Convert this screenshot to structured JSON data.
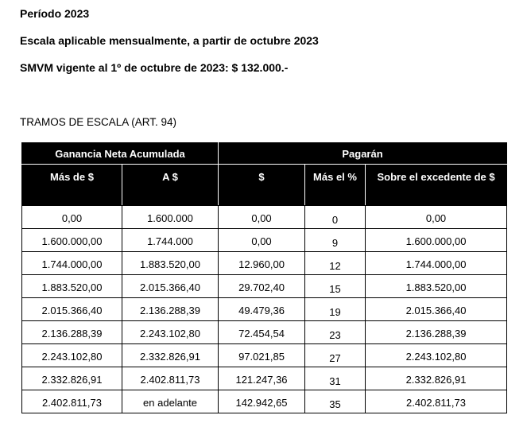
{
  "header": {
    "period": "Período 2023",
    "scale_note": "Escala aplicable mensualmente, a partir de octubre 2023",
    "smvm": "SMVM vigente al 1º de octubre de 2023: $ 132.000.-"
  },
  "section_title": "TRAMOS DE ESCALA (ART. 94)",
  "table": {
    "group_headers": {
      "left": "Ganancia Neta Acumulada",
      "right": "Pagarán"
    },
    "columns": [
      "Más de $",
      "A $",
      "$",
      "Más el %",
      "Sobre el excedente de $"
    ],
    "rows": [
      [
        "0,00",
        "1.600.000",
        "0,00",
        "0",
        "0,00"
      ],
      [
        "1.600.000,00",
        "1.744.000",
        "0,00",
        "9",
        "1.600.000,00"
      ],
      [
        "1.744.000,00",
        "1.883.520,00",
        "12.960,00",
        "12",
        "1.744.000,00"
      ],
      [
        "1.883.520,00",
        "2.015.366,40",
        "29.702,40",
        "15",
        "1.883.520,00"
      ],
      [
        "2.015.366,40",
        "2.136.288,39",
        "49.479,36",
        "19",
        "2.015.366,40"
      ],
      [
        "2.136.288,39",
        "2.243.102,80",
        "72.454,54",
        "23",
        "2.136.288,39"
      ],
      [
        "2.243.102,80",
        "2.332.826,91",
        "97.021,85",
        "27",
        "2.243.102,80"
      ],
      [
        "2.332.826,91",
        "2.402.811,73",
        "121.247,36",
        "31",
        "2.332.826,91"
      ],
      [
        "2.402.811,73",
        "en adelante",
        "142.942,65",
        "35",
        "2.402.811,73"
      ]
    ]
  }
}
